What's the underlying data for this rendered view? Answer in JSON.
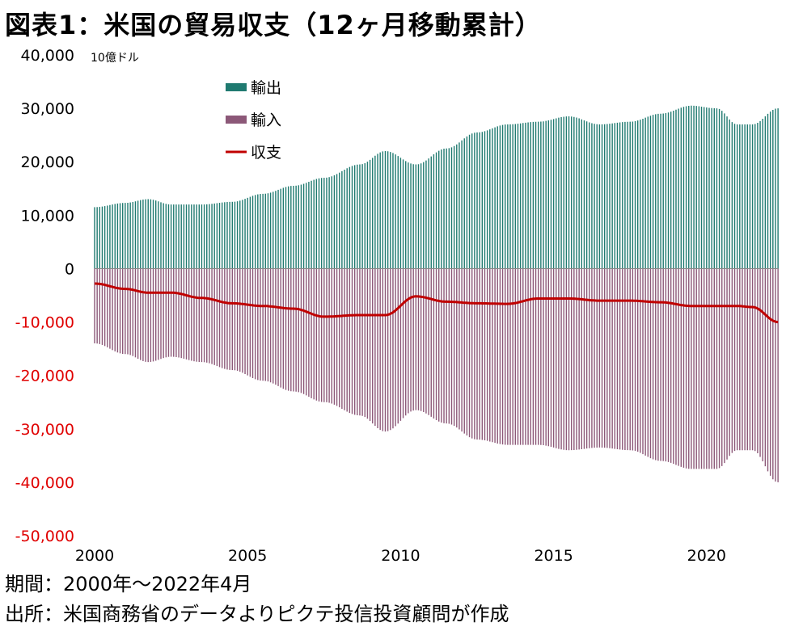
{
  "title": "図表1：米国の貿易収支（12ヶ月移動累計）",
  "footer": {
    "period": "期間：2000年～2022年4月",
    "source": "出所：米国商務省のデータよりピクテ投信投資顧問が作成"
  },
  "colors": {
    "exports": "#1f7a70",
    "imports": "#8c5878",
    "balance": "#c00000",
    "negative_tick": "#e00000"
  },
  "chart_data": {
    "type": "bar",
    "unit_label": "10億ドル",
    "x_range": [
      2000,
      2022.33
    ],
    "ylim": [
      -50000,
      40000
    ],
    "y_ticks": [
      40000,
      30000,
      20000,
      10000,
      0,
      -10000,
      -20000,
      -30000,
      -40000,
      -50000
    ],
    "y_tick_labels": [
      "40,000",
      "30,000",
      "20,000",
      "10,000",
      "0",
      "-10,000",
      "-20,000",
      "-30,000",
      "-40,000",
      "-50,000"
    ],
    "x_ticks": [
      2000,
      2005,
      2010,
      2015,
      2020
    ],
    "x_tick_labels": [
      "2000",
      "2005",
      "2010",
      "2015",
      "2020"
    ],
    "legend_position": "top-left",
    "series": [
      {
        "name": "輸出",
        "type": "bar",
        "x": [
          2000,
          2001,
          2001.75,
          2002.5,
          2003.5,
          2004.5,
          2005.5,
          2006.5,
          2007.5,
          2008.67,
          2009.5,
          2010.5,
          2011.5,
          2012.5,
          2013.5,
          2014.5,
          2015.5,
          2016.5,
          2017.5,
          2018.5,
          2019.5,
          2020.33,
          2021,
          2021.5,
          2022.33
        ],
        "values": [
          11500,
          12300,
          13000,
          12000,
          12000,
          12500,
          14000,
          15500,
          17000,
          19500,
          22000,
          19500,
          22500,
          25500,
          27000,
          27500,
          28500,
          27000,
          27500,
          29000,
          30500,
          30000,
          27000,
          27000,
          30000
        ]
      },
      {
        "name": "輸入",
        "type": "bar",
        "x": [
          2000,
          2001,
          2001.75,
          2002.5,
          2003.5,
          2004.5,
          2005.5,
          2006.5,
          2007.5,
          2008.67,
          2009.5,
          2010.5,
          2011.5,
          2012.5,
          2013.5,
          2014.5,
          2015.5,
          2016.5,
          2017.5,
          2018.5,
          2019.5,
          2020.33,
          2021,
          2021.5,
          2022.33
        ],
        "values": [
          -14000,
          -16000,
          -17500,
          -16500,
          -17500,
          -19000,
          -21000,
          -23000,
          -25000,
          -27500,
          -30500,
          -26500,
          -29000,
          -32000,
          -33000,
          -33000,
          -34000,
          -33500,
          -34000,
          -36000,
          -37500,
          -37500,
          -34000,
          -34000,
          -40000
        ]
      },
      {
        "name": "収支",
        "type": "line",
        "x": [
          2000,
          2001,
          2001.75,
          2002.5,
          2003.5,
          2004.5,
          2005.5,
          2006.5,
          2007.5,
          2008.67,
          2009.5,
          2010.5,
          2011.5,
          2012.5,
          2013.5,
          2014.5,
          2015.5,
          2016.5,
          2017.5,
          2018.5,
          2019.5,
          2020.33,
          2021,
          2021.5,
          2022.33
        ],
        "values": [
          -2800,
          -3800,
          -4500,
          -4500,
          -5500,
          -6500,
          -7000,
          -7500,
          -9000,
          -8700,
          -8700,
          -5200,
          -6200,
          -6500,
          -6600,
          -5600,
          -5600,
          -6000,
          -6000,
          -6300,
          -7000,
          -7000,
          -7000,
          -7200,
          -10000
        ]
      }
    ]
  }
}
